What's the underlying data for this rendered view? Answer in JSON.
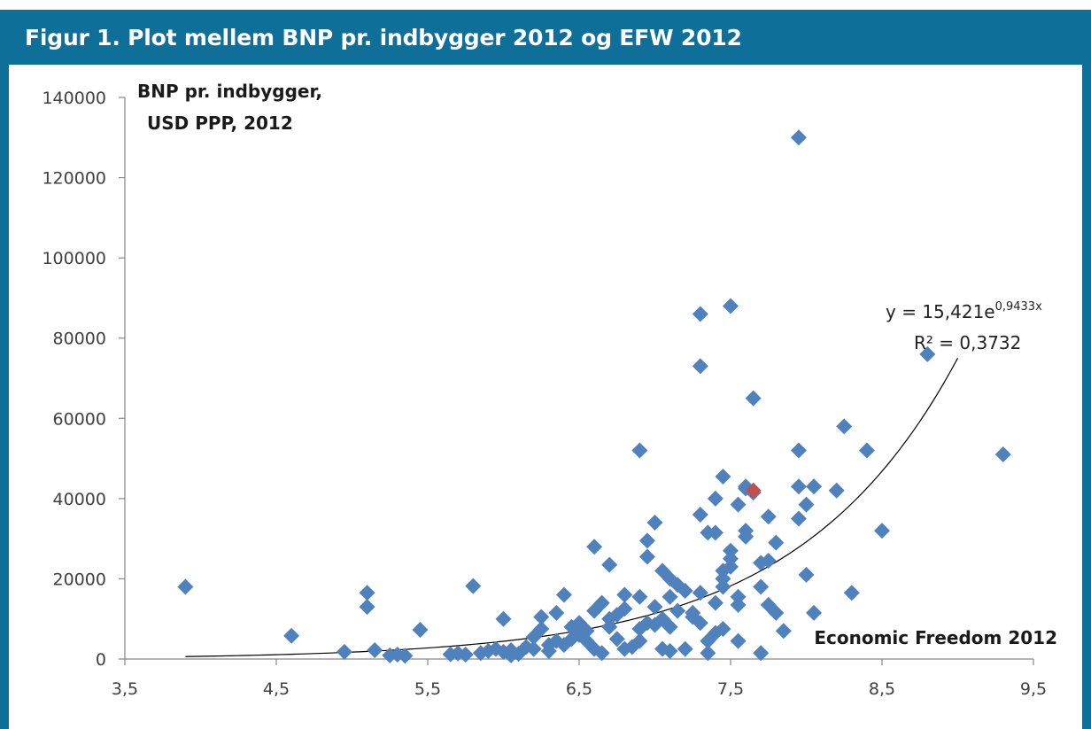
{
  "header": {
    "title": "Figur 1. Plot mellem BNP pr. indbygger 2012 og EFW 2012"
  },
  "colors": {
    "frame": "#0e6f98",
    "point": "#4f81bd",
    "highlight_point": "#c0504d",
    "trendline": "#000000",
    "axis": "#868686"
  },
  "chart_data": {
    "type": "scatter",
    "title": "",
    "ylabel_line1": "BNP pr. indbygger,",
    "ylabel_line2": "USD PPP, 2012",
    "xlabel": "Economic Freedom 2012",
    "xlim": [
      3.5,
      9.5
    ],
    "ylim": [
      0,
      140000
    ],
    "x_ticks": [
      "3,5",
      "4,5",
      "5,5",
      "6,5",
      "7,5",
      "8,5",
      "9,5"
    ],
    "y_ticks": [
      "0",
      "20000",
      "40000",
      "60000",
      "80000",
      "100000",
      "120000",
      "140000"
    ],
    "grid": false,
    "legend": "none",
    "trendline": {
      "type": "exponential",
      "a": 15.421,
      "b": 0.9433,
      "x_range": [
        3.9,
        9.0
      ],
      "equation_label": "y = 15,421e",
      "equation_exponent": "0,9433x",
      "r2_label": "R² = 0,3732"
    },
    "highlight": {
      "x": 7.65,
      "y": 42000
    },
    "points": [
      [
        3.9,
        18000
      ],
      [
        4.6,
        5800
      ],
      [
        4.95,
        1800
      ],
      [
        5.1,
        16500
      ],
      [
        5.1,
        13000
      ],
      [
        5.15,
        2200
      ],
      [
        5.25,
        900
      ],
      [
        5.3,
        1100
      ],
      [
        5.35,
        800
      ],
      [
        5.45,
        7300
      ],
      [
        5.65,
        1200
      ],
      [
        5.7,
        1400
      ],
      [
        5.75,
        1100
      ],
      [
        5.8,
        18200
      ],
      [
        5.85,
        1500
      ],
      [
        5.9,
        2000
      ],
      [
        5.95,
        2500
      ],
      [
        6.0,
        1800
      ],
      [
        6.0,
        10000
      ],
      [
        6.05,
        900
      ],
      [
        6.05,
        2200
      ],
      [
        6.1,
        1300
      ],
      [
        6.15,
        3000
      ],
      [
        6.2,
        2500
      ],
      [
        6.2,
        5500
      ],
      [
        6.25,
        7500
      ],
      [
        6.25,
        10500
      ],
      [
        6.3,
        3500
      ],
      [
        6.3,
        2000
      ],
      [
        6.35,
        4500
      ],
      [
        6.35,
        11500
      ],
      [
        6.4,
        3500
      ],
      [
        6.4,
        16000
      ],
      [
        6.45,
        5000
      ],
      [
        6.45,
        8000
      ],
      [
        6.5,
        6000
      ],
      [
        6.5,
        9000
      ],
      [
        6.55,
        7000
      ],
      [
        6.55,
        4500
      ],
      [
        6.6,
        28000
      ],
      [
        6.6,
        12000
      ],
      [
        6.6,
        2500
      ],
      [
        6.65,
        14000
      ],
      [
        6.65,
        1500
      ],
      [
        6.7,
        23500
      ],
      [
        6.7,
        10000
      ],
      [
        6.7,
        8000
      ],
      [
        6.75,
        11000
      ],
      [
        6.75,
        5000
      ],
      [
        6.8,
        12500
      ],
      [
        6.8,
        16000
      ],
      [
        6.8,
        2500
      ],
      [
        6.85,
        3000
      ],
      [
        6.9,
        52000
      ],
      [
        6.9,
        15500
      ],
      [
        6.9,
        4500
      ],
      [
        6.9,
        7500
      ],
      [
        6.95,
        29500
      ],
      [
        6.95,
        25500
      ],
      [
        6.95,
        9000
      ],
      [
        7.0,
        34000
      ],
      [
        7.0,
        13000
      ],
      [
        7.0,
        8500
      ],
      [
        7.05,
        22000
      ],
      [
        7.05,
        2500
      ],
      [
        7.05,
        10000
      ],
      [
        7.1,
        20000
      ],
      [
        7.1,
        8000
      ],
      [
        7.1,
        2000
      ],
      [
        7.1,
        15500
      ],
      [
        7.15,
        18500
      ],
      [
        7.15,
        12000
      ],
      [
        7.2,
        2500
      ],
      [
        7.2,
        17000
      ],
      [
        7.25,
        10500
      ],
      [
        7.25,
        11500
      ],
      [
        7.3,
        73000
      ],
      [
        7.3,
        86000
      ],
      [
        7.3,
        36000
      ],
      [
        7.3,
        16500
      ],
      [
        7.3,
        9000
      ],
      [
        7.35,
        31500
      ],
      [
        7.35,
        1500
      ],
      [
        7.35,
        4500
      ],
      [
        7.4,
        40000
      ],
      [
        7.4,
        31500
      ],
      [
        7.4,
        14000
      ],
      [
        7.4,
        6500
      ],
      [
        7.45,
        45500
      ],
      [
        7.45,
        22000
      ],
      [
        7.45,
        20000
      ],
      [
        7.45,
        18000
      ],
      [
        7.45,
        7500
      ],
      [
        7.5,
        88000
      ],
      [
        7.5,
        27000
      ],
      [
        7.5,
        25000
      ],
      [
        7.5,
        23000
      ],
      [
        7.55,
        38500
      ],
      [
        7.55,
        15500
      ],
      [
        7.55,
        13500
      ],
      [
        7.55,
        4500
      ],
      [
        7.6,
        43000
      ],
      [
        7.6,
        42500
      ],
      [
        7.6,
        32000
      ],
      [
        7.6,
        30500
      ],
      [
        7.65,
        65000
      ],
      [
        7.65,
        41500
      ],
      [
        7.7,
        24000
      ],
      [
        7.7,
        18000
      ],
      [
        7.7,
        1500
      ],
      [
        7.75,
        35500
      ],
      [
        7.75,
        24500
      ],
      [
        7.75,
        13500
      ],
      [
        7.8,
        29000
      ],
      [
        7.8,
        11500
      ],
      [
        7.85,
        7000
      ],
      [
        7.95,
        130000
      ],
      [
        7.95,
        43000
      ],
      [
        7.95,
        52000
      ],
      [
        7.95,
        35000
      ],
      [
        8.0,
        21000
      ],
      [
        8.0,
        38500
      ],
      [
        8.05,
        43000
      ],
      [
        8.05,
        11500
      ],
      [
        8.2,
        42000
      ],
      [
        8.25,
        58000
      ],
      [
        8.3,
        16500
      ],
      [
        8.4,
        52000
      ],
      [
        8.5,
        32000
      ],
      [
        8.8,
        76000
      ],
      [
        9.3,
        51000
      ]
    ]
  }
}
